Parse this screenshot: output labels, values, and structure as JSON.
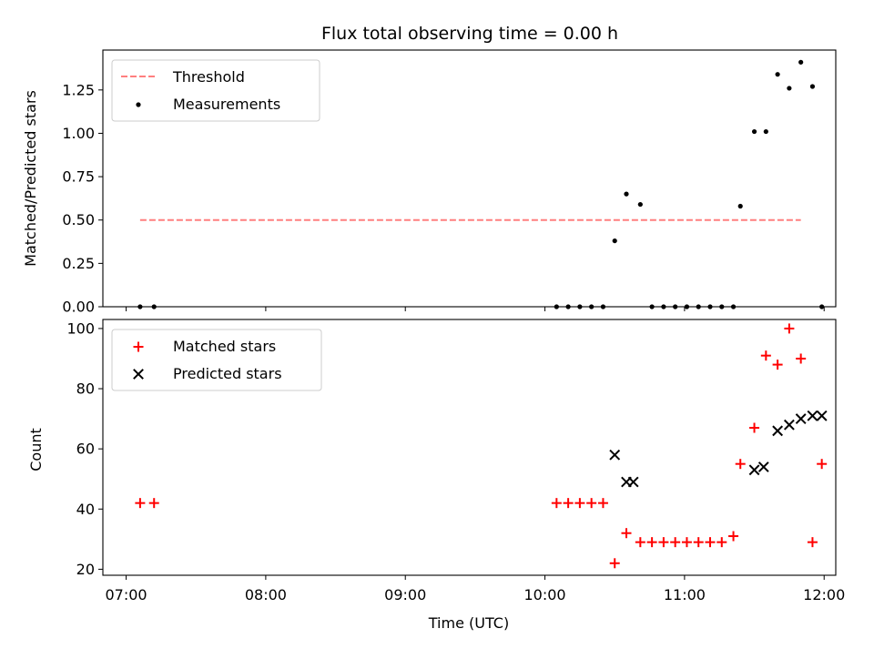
{
  "chart_data": [
    {
      "type": "scatter",
      "panel": "top",
      "title": "Flux total observing time = 0.00 h",
      "xlabel": "",
      "ylabel": "Matched/Predicted stars",
      "ylim": [
        0,
        1.48
      ],
      "xlim": [
        "06:50",
        "12:05"
      ],
      "yticks": [
        "0.00",
        "0.25",
        "0.50",
        "0.75",
        "1.00",
        "1.25"
      ],
      "ytick_values": [
        0,
        0.25,
        0.5,
        0.75,
        1.0,
        1.25
      ],
      "grid": false,
      "legend_position": "top-left",
      "threshold": {
        "name": "Threshold",
        "value": 0.5,
        "x": [
          "07:06",
          "11:50"
        ],
        "color": "#ff7f7f",
        "style": "dashed"
      },
      "series": [
        {
          "name": "Measurements",
          "marker": "dot",
          "color": "#000000",
          "x": [
            "07:06",
            "07:12",
            "10:05",
            "10:10",
            "10:15",
            "10:20",
            "10:25",
            "10:30",
            "10:35",
            "10:41",
            "10:46",
            "10:51",
            "10:56",
            "11:01",
            "11:06",
            "11:11",
            "11:16",
            "11:21",
            "11:24",
            "11:30",
            "11:35",
            "11:40",
            "11:45",
            "11:50",
            "11:55",
            "11:59"
          ],
          "y": [
            0.0,
            0.0,
            0.0,
            0.0,
            0.0,
            0.0,
            0.0,
            0.38,
            0.65,
            0.59,
            0.0,
            0.0,
            0.0,
            0.0,
            0.0,
            0.0,
            0.0,
            0.0,
            0.58,
            1.01,
            1.01,
            1.34,
            1.26,
            1.41,
            1.27,
            0.0
          ]
        }
      ]
    },
    {
      "type": "scatter",
      "panel": "bottom",
      "title": "",
      "xlabel": "Time (UTC)",
      "ylabel": "Count",
      "ylim": [
        18,
        103
      ],
      "xlim": [
        "06:50",
        "12:05"
      ],
      "xticks": [
        "07:00",
        "08:00",
        "09:00",
        "10:00",
        "11:00",
        "12:00"
      ],
      "yticks": [
        "20",
        "40",
        "60",
        "80",
        "100"
      ],
      "ytick_values": [
        20,
        40,
        60,
        80,
        100
      ],
      "grid": false,
      "legend_position": "top-left",
      "series": [
        {
          "name": "Matched stars",
          "marker": "plus",
          "color": "#ff0000",
          "x": [
            "07:06",
            "07:12",
            "10:05",
            "10:10",
            "10:15",
            "10:20",
            "10:25",
            "10:30",
            "10:35",
            "10:41",
            "10:46",
            "10:51",
            "10:56",
            "11:01",
            "11:06",
            "11:11",
            "11:16",
            "11:21",
            "11:24",
            "11:30",
            "11:35",
            "11:40",
            "11:45",
            "11:50",
            "11:55",
            "11:59"
          ],
          "y": [
            42,
            42,
            42,
            42,
            42,
            42,
            42,
            22,
            32,
            29,
            29,
            29,
            29,
            29,
            29,
            29,
            29,
            31,
            55,
            67,
            91,
            88,
            100,
            90,
            29,
            55
          ]
        },
        {
          "name": "Predicted stars",
          "marker": "x",
          "color": "#000000",
          "x": [
            "10:30",
            "10:35",
            "10:38",
            "11:30",
            "11:34",
            "11:40",
            "11:45",
            "11:50",
            "11:55",
            "11:59"
          ],
          "y": [
            58,
            49,
            49,
            53,
            54,
            66,
            68,
            70,
            71,
            71
          ]
        }
      ]
    }
  ]
}
